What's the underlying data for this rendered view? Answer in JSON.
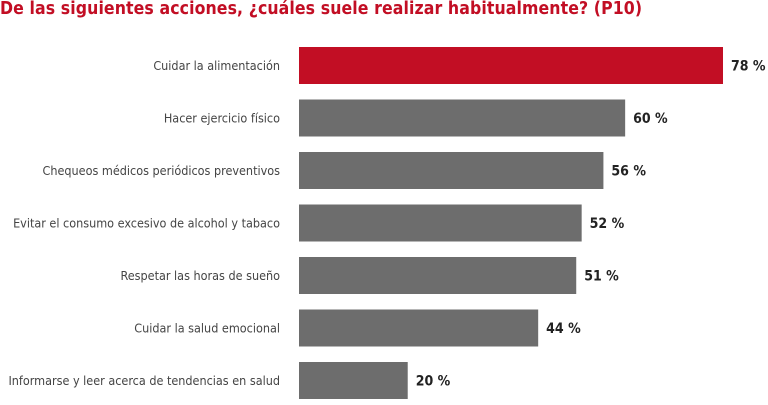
{
  "chart_data": {
    "type": "bar",
    "orientation": "horizontal",
    "title": "De las siguientes acciones, ¿cuáles suele realizar habitualmente? (P10)",
    "categories": [
      "Cuidar la alimentación",
      "Hacer ejercicio físico",
      "Chequeos médicos periódicos preventivos",
      "Evitar el consumo excesivo de alcohol y tabaco",
      "Respetar las horas de sueño",
      "Cuidar la salud emocional",
      "Informarse y leer acerca de tendencias en salud"
    ],
    "values": [
      78,
      60,
      56,
      52,
      51,
      44,
      20
    ],
    "value_suffix": " %",
    "xlim": [
      0,
      78
    ],
    "grid": false,
    "colors": {
      "highlight": "#c20e24",
      "default": "#6d6d6d",
      "title": "#c20e24"
    }
  }
}
